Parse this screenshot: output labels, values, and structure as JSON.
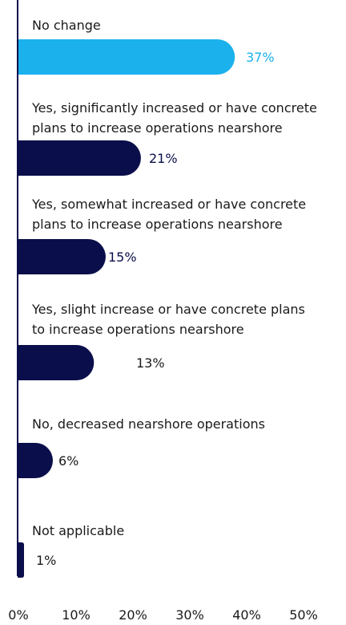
{
  "chart_data": {
    "type": "bar",
    "orientation": "horizontal",
    "categories": [
      [
        "No change"
      ],
      [
        "Yes, significantly increased or have concrete",
        "plans to increase operations nearshore"
      ],
      [
        "Yes, somewhat increased or have concrete",
        "plans to increase operations nearshore"
      ],
      [
        "Yes, slight increase or have concrete plans",
        "to increase operations nearshore"
      ],
      [
        "No, decreased nearshore operations"
      ],
      [
        "Not applicable"
      ]
    ],
    "values": [
      37,
      21,
      15,
      13,
      6,
      1
    ],
    "value_labels": [
      "37%",
      "21%",
      "15%",
      "13%",
      "6%",
      "1%"
    ],
    "highlight_index": 0,
    "colors": {
      "highlight": "#1ab1ec",
      "default": "#0a0e4a",
      "axis": "#0a0e4a",
      "highlight_label": "#1ab1ec",
      "default_label": "#0a0e4a",
      "secondary_label": "#1a1a1a"
    },
    "xlim": [
      0,
      50
    ],
    "x_ticks": [
      0,
      10,
      20,
      30,
      40,
      50
    ],
    "x_tick_labels": [
      "0%",
      "10%",
      "20%",
      "30%",
      "40%",
      "50%"
    ],
    "grid": false,
    "legend": false,
    "title": "",
    "xlabel": "",
    "ylabel": ""
  }
}
